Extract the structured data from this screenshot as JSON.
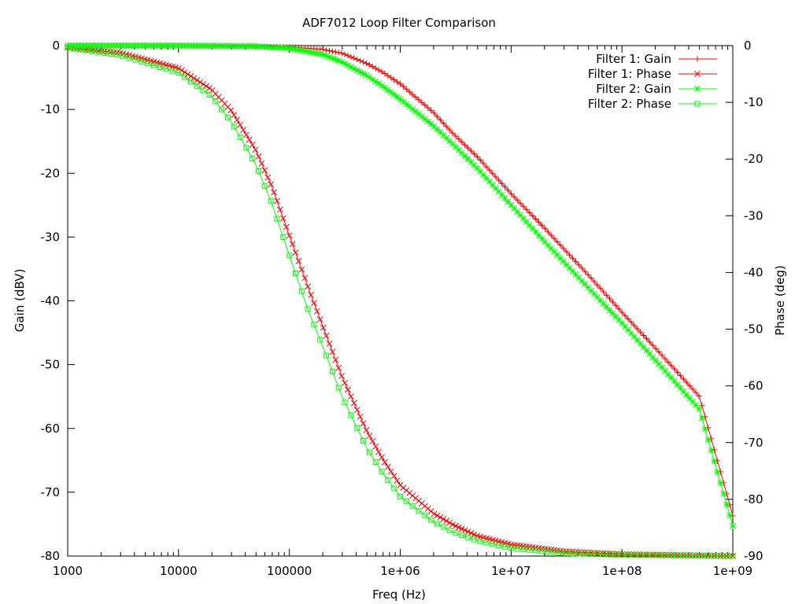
{
  "chart_data": {
    "type": "line",
    "title": "ADF7012 Loop Filter Comparison",
    "xlabel": "Freq (Hz)",
    "ylabel": "Gain (dBV)",
    "y2label": "Phase (deg)",
    "x_scale": "log",
    "xlim": [
      1000,
      1000000000
    ],
    "ylim": [
      -80,
      0
    ],
    "y2lim": [
      -90,
      0
    ],
    "grid": false,
    "legend_position": "top-right",
    "x_ticks": [
      {
        "v": 1000,
        "label": "1000"
      },
      {
        "v": 10000,
        "label": "10000"
      },
      {
        "v": 100000,
        "label": "100000"
      },
      {
        "v": 1000000,
        "label": "1e+06"
      },
      {
        "v": 10000000,
        "label": "1e+07"
      },
      {
        "v": 100000000,
        "label": "1e+08"
      },
      {
        "v": 1000000000,
        "label": "1e+09"
      }
    ],
    "y_ticks": [
      {
        "v": 0,
        "label": "0"
      },
      {
        "v": -10,
        "label": "-10"
      },
      {
        "v": -20,
        "label": "-20"
      },
      {
        "v": -30,
        "label": "-30"
      },
      {
        "v": -40,
        "label": "-40"
      },
      {
        "v": -50,
        "label": "-50"
      },
      {
        "v": -60,
        "label": "-60"
      },
      {
        "v": -70,
        "label": "-70"
      },
      {
        "v": -80,
        "label": "-80"
      }
    ],
    "y2_ticks": [
      {
        "v": 0,
        "label": "0"
      },
      {
        "v": -10,
        "label": "-10"
      },
      {
        "v": -20,
        "label": "-20"
      },
      {
        "v": -30,
        "label": "-30"
      },
      {
        "v": -40,
        "label": "-40"
      },
      {
        "v": -50,
        "label": "-50"
      },
      {
        "v": -60,
        "label": "-60"
      },
      {
        "v": -70,
        "label": "-70"
      },
      {
        "v": -80,
        "label": "-80"
      },
      {
        "v": -90,
        "label": "-90"
      }
    ],
    "series": [
      {
        "name": "Filter 1: Gain",
        "axis": "y",
        "color": "#ff0000",
        "marker": "plus",
        "x": [
          1000,
          10000,
          100000,
          200000,
          300000,
          500000,
          700000,
          1000000,
          2000000,
          3000000,
          5000000,
          10000000,
          20000000,
          50000000,
          100000000,
          200000000,
          500000000,
          1000000000
        ],
        "y": [
          0,
          0,
          -0.2,
          -0.6,
          -1.2,
          -2.8,
          -4.2,
          -6.0,
          -10.5,
          -13.8,
          -17.5,
          -23.2,
          -28.6,
          -36.0,
          -41.8,
          -47.4,
          -55.0,
          -73.7
        ]
      },
      {
        "name": "Filter 1: Phase",
        "axis": "y2",
        "color": "#ff0000",
        "marker": "cross",
        "x": [
          1000,
          3000,
          10000,
          20000,
          30000,
          50000,
          70000,
          100000,
          150000,
          200000,
          300000,
          500000,
          700000,
          1000000,
          2000000,
          3000000,
          5000000,
          10000000,
          30000000,
          100000000,
          1000000000
        ],
        "y": [
          -0.3,
          -1.3,
          -4.0,
          -7.8,
          -11.5,
          -18.5,
          -25.0,
          -33.5,
          -43.0,
          -49.5,
          -58.5,
          -68.0,
          -73.0,
          -77.5,
          -82.5,
          -84.5,
          -86.5,
          -88.0,
          -89.2,
          -89.7,
          -90.0
        ]
      },
      {
        "name": "Filter 2: Gain",
        "axis": "y",
        "color": "#00ff00",
        "marker": "star",
        "x": [
          1000,
          10000,
          50000,
          100000,
          200000,
          300000,
          500000,
          700000,
          1000000,
          2000000,
          3000000,
          5000000,
          10000000,
          20000000,
          50000000,
          100000000,
          200000000,
          500000000,
          1000000000
        ],
        "y": [
          0,
          0,
          -0.1,
          -0.4,
          -1.4,
          -2.6,
          -4.7,
          -6.4,
          -8.4,
          -12.6,
          -15.5,
          -19.3,
          -25.0,
          -30.7,
          -38.0,
          -43.5,
          -49.3,
          -57.0,
          -75.3
        ]
      },
      {
        "name": "Filter 2: Phase",
        "axis": "y2",
        "color": "#00ff00",
        "marker": "square",
        "x": [
          1000,
          3000,
          10000,
          20000,
          30000,
          50000,
          70000,
          100000,
          150000,
          200000,
          300000,
          500000,
          700000,
          1000000,
          2000000,
          3000000,
          5000000,
          10000000,
          30000000,
          100000000,
          1000000000
        ],
        "y": [
          -0.4,
          -1.7,
          -4.8,
          -9.0,
          -13.5,
          -21.0,
          -28.0,
          -37.0,
          -47.0,
          -53.0,
          -62.0,
          -71.0,
          -75.5,
          -79.5,
          -84.0,
          -85.8,
          -87.3,
          -88.6,
          -89.5,
          -89.8,
          -90.0
        ]
      }
    ]
  }
}
